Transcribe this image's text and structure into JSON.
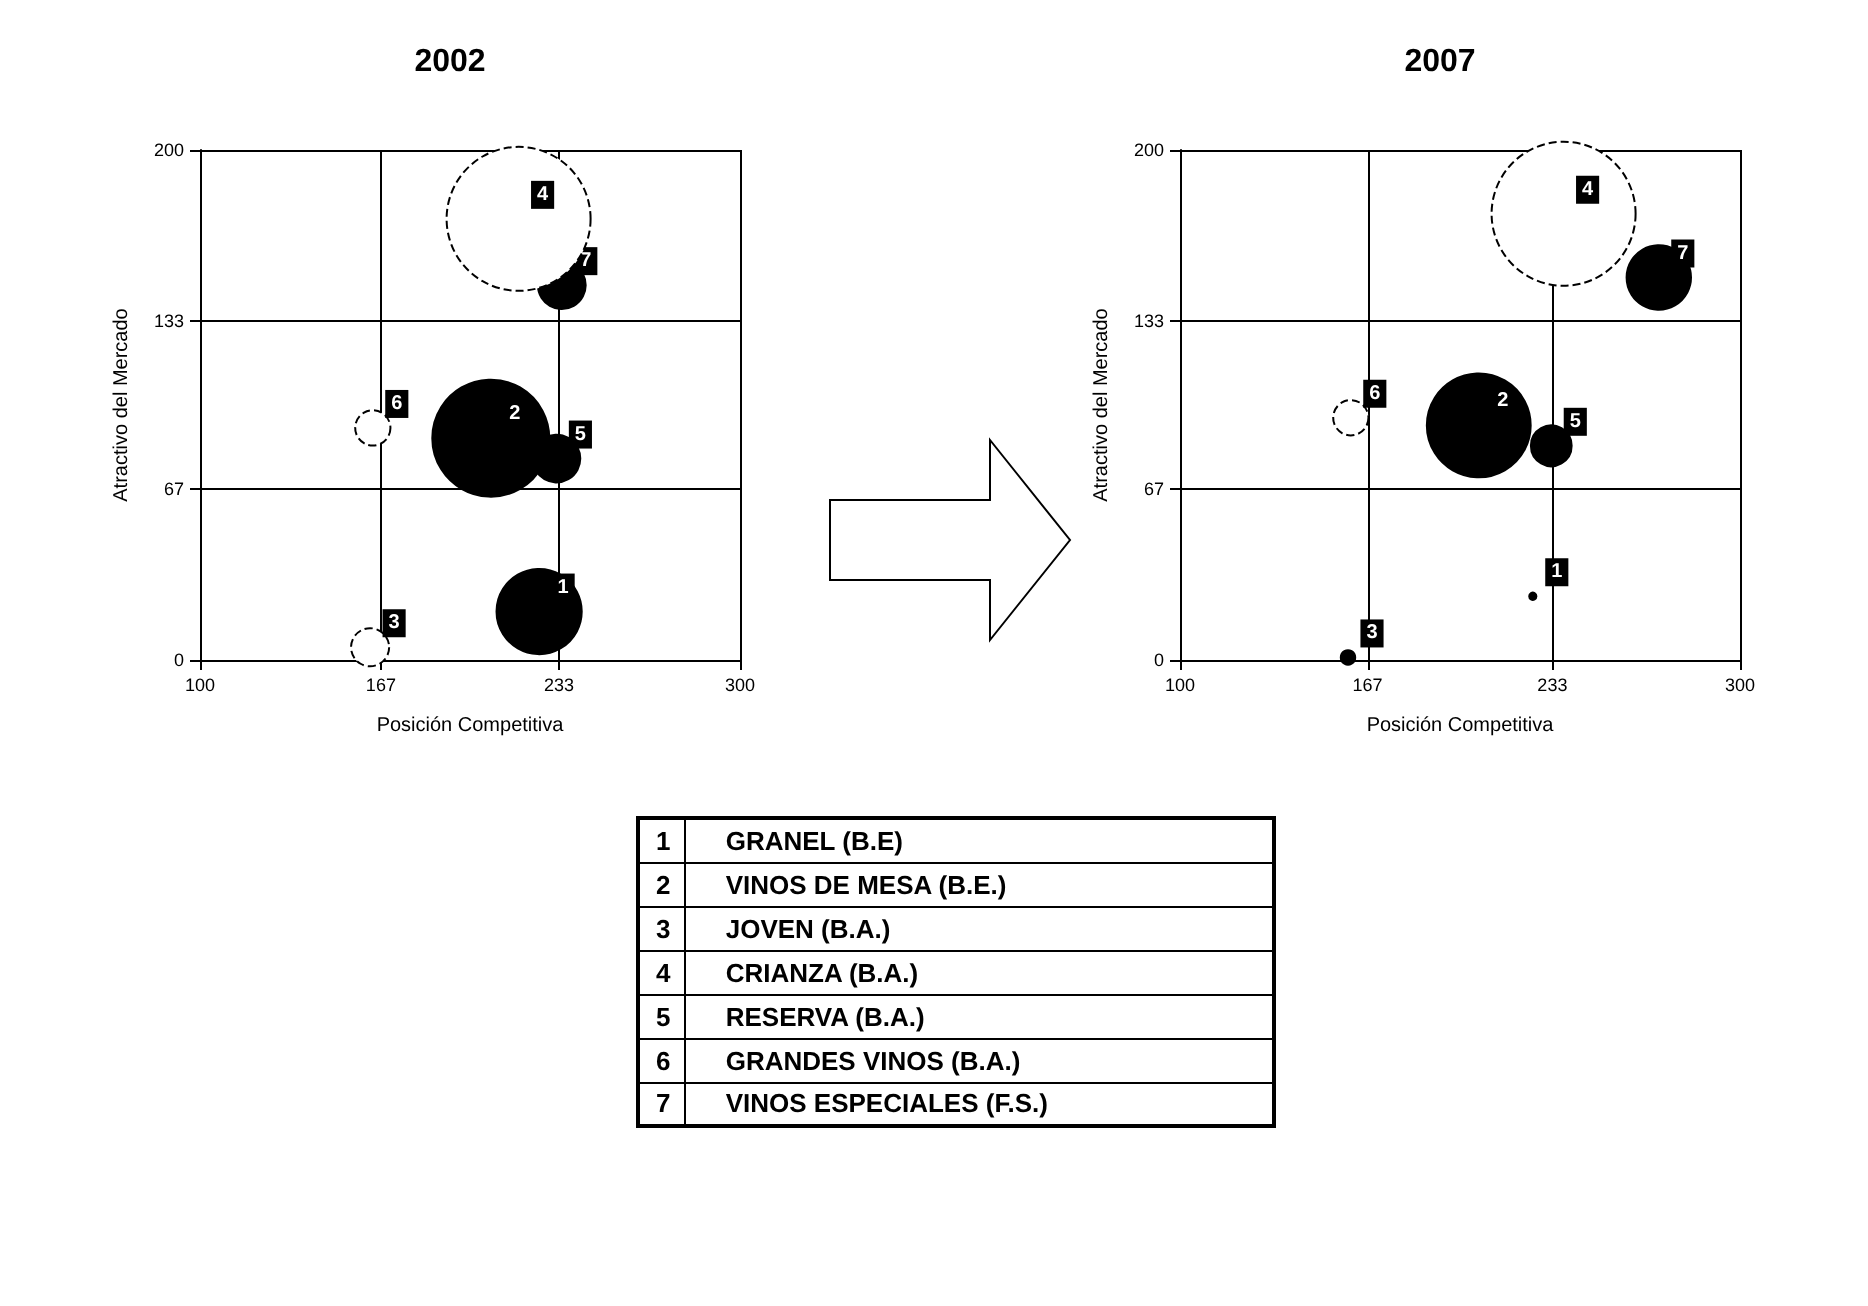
{
  "chart_data": [
    {
      "type": "bubble",
      "title": "2002",
      "xlabel": "Posición Competitiva",
      "ylabel": "Atractivo del Mercado",
      "xlim": [
        100,
        300
      ],
      "xticks": [
        100,
        167,
        233,
        300
      ],
      "ylim": [
        0,
        200
      ],
      "yticks": [
        0,
        67,
        133,
        200
      ],
      "grid": true,
      "marker": "circle",
      "series": [
        {
          "name": "1",
          "color": "#000000",
          "x": [
            225.6
          ],
          "values": [
            19
          ],
          "sizes": [
            0.35
          ]
        },
        {
          "name": "2",
          "color": "#000000",
          "x": [
            207.7
          ],
          "values": [
            87
          ],
          "sizes": [
            0.66
          ]
        },
        {
          "name": "3",
          "color": "#ffffff",
          "x": [
            163
          ],
          "values": [
            5
          ],
          "sizes": [
            0.07
          ]
        },
        {
          "name": "4",
          "color": "#ffffff",
          "x": [
            218
          ],
          "values": [
            173
          ],
          "sizes": [
            1
          ]
        },
        {
          "name": "5",
          "color": "#000000",
          "x": [
            232
          ],
          "values": [
            79
          ],
          "sizes": [
            0.11
          ]
        },
        {
          "name": "6",
          "color": "#ffffff",
          "x": [
            164
          ],
          "values": [
            91
          ],
          "sizes": [
            0.06
          ]
        },
        {
          "name": "7",
          "color": "#000000",
          "x": [
            234
          ],
          "values": [
            147
          ],
          "sizes": [
            0.11
          ]
        }
      ]
    },
    {
      "type": "bubble",
      "title": "2007",
      "xlabel": "Posición Competitiva",
      "ylabel": "Atractivo del Mercado",
      "xlim": [
        100,
        300
      ],
      "xticks": [
        100,
        167,
        233,
        300
      ],
      "ylim": [
        0,
        200
      ],
      "yticks": [
        0,
        67,
        133,
        200
      ],
      "grid": true,
      "marker": "circle",
      "series": [
        {
          "name": "1",
          "color": "#000000",
          "x": [
            226
          ],
          "values": [
            25
          ],
          "sizes": [
            0.0025
          ]
        },
        {
          "name": "2",
          "color": "#000000",
          "x": [
            206.7
          ],
          "values": [
            92
          ],
          "sizes": [
            0.52
          ]
        },
        {
          "name": "3",
          "color": "#000000",
          "x": [
            160
          ],
          "values": [
            1
          ],
          "sizes": [
            0.01
          ]
        },
        {
          "name": "4",
          "color": "#ffffff",
          "x": [
            237
          ],
          "values": [
            175
          ],
          "sizes": [
            1
          ]
        },
        {
          "name": "5",
          "color": "#000000",
          "x": [
            232.6
          ],
          "values": [
            84
          ],
          "sizes": [
            0.08
          ]
        },
        {
          "name": "6",
          "color": "#ffffff",
          "x": [
            161
          ],
          "values": [
            95
          ],
          "sizes": [
            0.06
          ]
        },
        {
          "name": "7",
          "color": "#000000",
          "x": [
            271
          ],
          "values": [
            150
          ],
          "sizes": [
            0.2
          ]
        }
      ]
    },
    {
      "type": "other",
      "annotations": [
        "1 GRANEL (B.E)",
        "2 VINOS DE MESA (B.E.)",
        "3 JOVEN (B.A.)",
        "4 CRIANZA (B.A.)",
        "5 RESERVA (B.A.)",
        "6 GRANDES VINOS (B.A.)",
        "7 VINOS ESPECIALES (F.S.)"
      ]
    }
  ]
}
